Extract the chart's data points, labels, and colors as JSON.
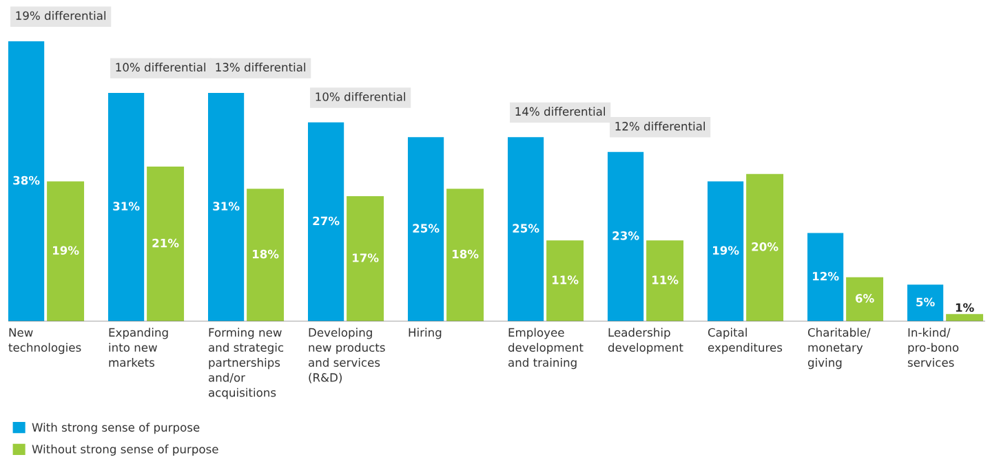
{
  "chart_data": {
    "type": "bar",
    "categories": [
      "New\ntechnologies",
      "Expanding\ninto new\nmarkets",
      "Forming new\nand strategic\npartnerships\nand/or\nacquisitions",
      "Developing\nnew products\nand services\n(R&D)",
      "Hiring",
      "Employee\ndevelopment\nand training",
      "Leadership\ndevelopment",
      "Capital\nexpenditures",
      "Charitable/\nmonetary\ngiving",
      "In-kind/\npro-bono\nservices"
    ],
    "series": [
      {
        "name": "With strong sense of purpose",
        "color": "#00a3e0",
        "values": [
          38,
          31,
          31,
          27,
          25,
          25,
          23,
          19,
          12,
          5
        ],
        "value_labels": [
          "38%",
          "31%",
          "31%",
          "27%",
          "25%",
          "25%",
          "23%",
          "19%",
          "12%",
          "5%"
        ]
      },
      {
        "name": "Without strong sense of purpose",
        "color": "#9bcb3c",
        "values": [
          19,
          21,
          18,
          17,
          18,
          11,
          11,
          20,
          6,
          1
        ],
        "value_labels": [
          "19%",
          "21%",
          "18%",
          "17%",
          "18%",
          "11%",
          "11%",
          "20%",
          "6%",
          "1%"
        ]
      }
    ],
    "annotations": [
      {
        "text": "19% differential",
        "x": "New\ntechnologies",
        "y": 38
      },
      {
        "text": "10% differential",
        "x": "Expanding\ninto new\nmarkets",
        "y": 31
      },
      {
        "text": "13% differential",
        "x": "Forming new\nand strategic\npartnerships\nand/or\nacquisitions",
        "y": 31
      },
      {
        "text": "10% differential",
        "x": "Developing\nnew products\nand services\n(R&D)",
        "y": 27
      },
      {
        "text": "14% differential",
        "x": "Employee\ndevelopment\nand training",
        "y": 25
      },
      {
        "text": "12% differential",
        "x": "Leadership\ndevelopment",
        "y": 23
      }
    ],
    "legend": "bottom left"
  }
}
